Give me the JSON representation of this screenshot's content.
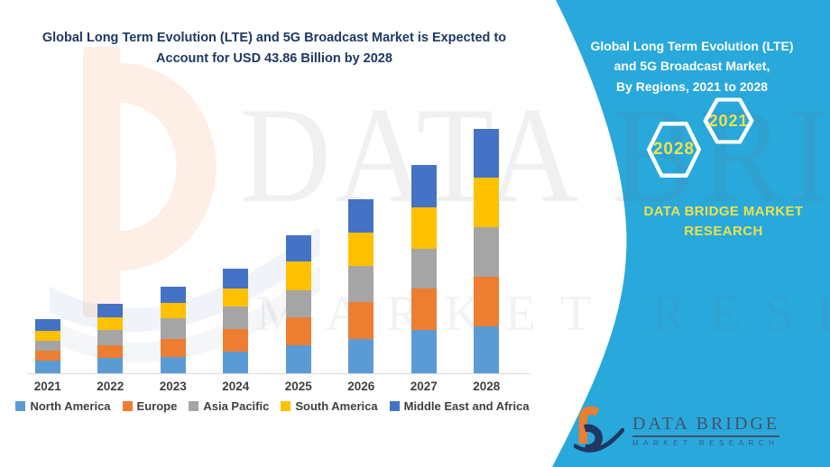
{
  "colors": {
    "panel_teal": "#29A8DB",
    "accent_yellow": "#E9E24D",
    "title_navy": "#1F3864",
    "axis_text": "#404040",
    "axis_line": "#D9D9D9",
    "logo_orange": "#ED7D31",
    "logo_navy": "#1F3864",
    "logo_text": "#44546A"
  },
  "header": {
    "title_lines": [
      "Global Long Term Evolution (LTE) and 5G Broadcast Market is Expected to",
      "Account for  USD 43.86 Billion by 2028"
    ]
  },
  "panel": {
    "title_lines": [
      "Global Long Term Evolution (LTE)",
      "and 5G Broadcast Market,",
      "By Regions, 2021 to 2028"
    ],
    "hexagons": [
      {
        "label": "2028"
      },
      {
        "label": "2021"
      }
    ],
    "brand_lines": [
      "DATA BRIDGE MARKET",
      "RESEARCH"
    ]
  },
  "watermark": {
    "line1": "DATA BRIDGE",
    "line2": "MARKET RESEARCH"
  },
  "footer_logo": {
    "name": "DATA BRIDGE",
    "subtext": "MARKET RESEARCH"
  },
  "chart_data": {
    "type": "bar",
    "stacked": true,
    "title": "Global Long Term Evolution (LTE) and 5G Broadcast Market, By Regions, 2021 to 2028",
    "unit": "USD Billion",
    "xlabel": "",
    "ylabel": "",
    "ylim": [
      0,
      44
    ],
    "grid": false,
    "legend_position": "bottom",
    "categories": [
      "2021",
      "2022",
      "2023",
      "2024",
      "2025",
      "2026",
      "2027",
      "2028"
    ],
    "series": [
      {
        "name": "North America",
        "color": "#5B9BD5",
        "values": [
          2.3,
          2.8,
          3.0,
          3.9,
          5.1,
          6.2,
          7.8,
          8.4
        ]
      },
      {
        "name": "Europe",
        "color": "#ED7D31",
        "values": [
          1.8,
          2.3,
          3.1,
          4.1,
          5.0,
          6.6,
          7.4,
          9.0
        ]
      },
      {
        "name": "Asia Pacific",
        "color": "#A5A5A5",
        "values": [
          1.7,
          2.6,
          3.7,
          4.0,
          4.8,
          6.4,
          7.2,
          8.8
        ]
      },
      {
        "name": "South America",
        "color": "#FFC000",
        "values": [
          1.8,
          2.3,
          2.8,
          3.2,
          5.2,
          6.0,
          7.4,
          8.9
        ]
      },
      {
        "name": "Middle East and Africa",
        "color": "#4472C4",
        "values": [
          2.1,
          2.4,
          3.0,
          3.6,
          4.6,
          6.1,
          7.6,
          8.76
        ]
      }
    ],
    "totals_by_year": [
      9.7,
      12.4,
      15.6,
      18.8,
      24.7,
      31.3,
      37.4,
      43.86
    ],
    "callout_value": "USD 43.86 Billion by 2028"
  }
}
